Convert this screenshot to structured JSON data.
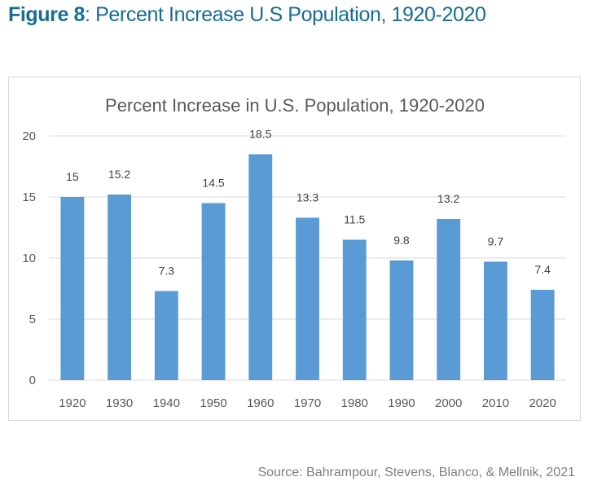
{
  "figure": {
    "label": "Figure 8",
    "title_rest": ": Percent Increase U.S Population, 1920-2020",
    "title_color": "#166c95"
  },
  "source": "Source: Bahrampour, Stevens, Blanco, & Mellnik, 2021",
  "chart_data": {
    "type": "bar",
    "title": "Percent Increase in U.S. Population, 1920-2020",
    "xlabel": "",
    "ylabel": "",
    "categories": [
      "1920",
      "1930",
      "1940",
      "1950",
      "1960",
      "1970",
      "1980",
      "1990",
      "2000",
      "2010",
      "2020"
    ],
    "values": [
      15,
      15.2,
      7.3,
      14.5,
      18.5,
      13.3,
      11.5,
      9.8,
      13.2,
      9.7,
      7.4
    ],
    "data_labels": [
      "15",
      "15.2",
      "7.3",
      "14.5",
      "18.5",
      "13.3",
      "11.5",
      "9.8",
      "13.2",
      "9.7",
      "7.4"
    ],
    "ylim": [
      0,
      20
    ],
    "yticks": [
      0,
      5,
      10,
      15,
      20
    ],
    "grid": true,
    "legend": "none",
    "bar_color": "#5b9bd5"
  }
}
